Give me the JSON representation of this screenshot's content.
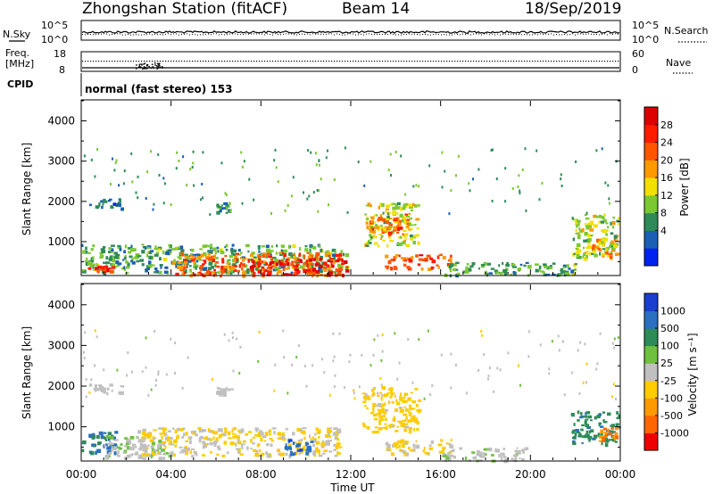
{
  "header": {
    "title": "Zhongshan Station (fitACF)",
    "beam": "Beam 14",
    "date": "18/Sep/2019"
  },
  "noise_panel": {
    "left_label": "N.Sky",
    "left_ticks": [
      "10^5",
      "10^0"
    ],
    "right_ticks": [
      "10^5",
      "10^0"
    ],
    "right_label": "N.Search"
  },
  "freq_panel": {
    "left_label_line1": "Freq.",
    "left_label_line2": "[MHz]",
    "left_ticks": [
      "18",
      "8"
    ],
    "right_ticks": [
      "60",
      "0"
    ],
    "right_label": "Nave"
  },
  "cpid_panel": {
    "label": "CPID",
    "text": "normal (fast stereo) 153"
  },
  "power_panel": {
    "ylabel": "Slant Range [km]",
    "yticks": [
      "4000",
      "3000",
      "2000",
      "1000"
    ],
    "colorbar_label": "Power [dB]",
    "colorbar_ticks": [
      "28",
      "24",
      "20",
      "16",
      "12",
      "8",
      "4"
    ],
    "colors": [
      "#0022ee",
      "#1a5fb4",
      "#2e8b57",
      "#7cc832",
      "#f2e000",
      "#ff9900",
      "#ff5500",
      "#ff1a00",
      "#dd0000"
    ]
  },
  "velocity_panel": {
    "ylabel": "Slant Range [km]",
    "yticks": [
      "4000",
      "3000",
      "2000",
      "1000"
    ],
    "colorbar_label": "Velocity [m s⁻¹]",
    "colorbar_ticks": [
      "1000",
      "500",
      "100",
      "25",
      "-25",
      "-100",
      "-500",
      "-1000"
    ],
    "colors": [
      "#1a3fd0",
      "#2a6fc0",
      "#2e8b57",
      "#70c040",
      "#c0c0c0",
      "#ffcc00",
      "#ff9900",
      "#ff6600",
      "#ee0000"
    ]
  },
  "x_axis": {
    "ticks": [
      "00:00",
      "04:00",
      "08:00",
      "12:00",
      "16:00",
      "20:00",
      "00:00"
    ],
    "label": "Time UT"
  },
  "chart_data": {
    "type": "heatmap",
    "title": "Zhongshan Station (fitACF)",
    "xlabel": "Time UT",
    "ylabel": "Slant Range [km]",
    "x_range_hours": [
      0,
      24
    ],
    "y_range_km": [
      180,
      4500
    ],
    "panels": [
      {
        "name": "Power [dB]",
        "color_scale": [
          0,
          32
        ],
        "blobs": [
          {
            "t0": 0.0,
            "t1": 11.8,
            "r0": 250,
            "r1": 950,
            "value": 10
          },
          {
            "t0": 0.2,
            "t1": 1.4,
            "r0": 300,
            "r1": 420,
            "value": 26
          },
          {
            "t0": 4.0,
            "t1": 11.5,
            "r0": 180,
            "r1": 750,
            "value": 22
          },
          {
            "t0": 7.5,
            "t1": 11.8,
            "r0": 200,
            "r1": 600,
            "value": 28
          },
          {
            "t0": 12.6,
            "t1": 15.0,
            "r0": 900,
            "r1": 2000,
            "value": 14
          },
          {
            "t0": 12.8,
            "t1": 14.6,
            "r0": 1200,
            "r1": 1700,
            "value": 22
          },
          {
            "t0": 13.5,
            "t1": 16.5,
            "r0": 350,
            "r1": 700,
            "value": 24
          },
          {
            "t0": 16.0,
            "t1": 22.0,
            "r0": 180,
            "r1": 500,
            "value": 10
          },
          {
            "t0": 21.8,
            "t1": 23.9,
            "r0": 600,
            "r1": 1700,
            "value": 14
          },
          {
            "t0": 22.7,
            "t1": 23.9,
            "r0": 650,
            "r1": 1100,
            "value": 20
          },
          {
            "t0": 6.0,
            "t1": 6.6,
            "r0": 1700,
            "r1": 2000,
            "value": 9
          },
          {
            "t0": 0.3,
            "t1": 1.8,
            "r0": 1850,
            "r1": 2100,
            "value": 7
          }
        ]
      },
      {
        "name": "Velocity [m s-1]",
        "color_scale": [
          -1000,
          1000
        ],
        "blobs": [
          {
            "t0": 0.0,
            "t1": 1.5,
            "r0": 300,
            "r1": 900,
            "value": 600
          },
          {
            "t0": 1.0,
            "t1": 4.0,
            "r0": 250,
            "r1": 800,
            "value": 80
          },
          {
            "t0": 2.5,
            "t1": 11.5,
            "r0": 300,
            "r1": 1000,
            "value": -120
          },
          {
            "t0": 9.0,
            "t1": 10.2,
            "r0": 350,
            "r1": 800,
            "value": 700
          },
          {
            "t0": 12.5,
            "t1": 15.0,
            "r0": 900,
            "r1": 2000,
            "value": -200
          },
          {
            "t0": 13.5,
            "t1": 16.5,
            "r0": 350,
            "r1": 700,
            "value": -150
          },
          {
            "t0": 16.0,
            "t1": 20.0,
            "r0": 180,
            "r1": 500,
            "value": 40
          },
          {
            "t0": 21.8,
            "t1": 23.9,
            "r0": 600,
            "r1": 1400,
            "value": 500
          },
          {
            "t0": 23.0,
            "t1": 23.9,
            "r0": 650,
            "r1": 1000,
            "value": -500
          },
          {
            "t0": 0.3,
            "t1": 1.8,
            "r0": 1850,
            "r1": 2100,
            "value": 0
          },
          {
            "t0": 6.0,
            "t1": 6.6,
            "r0": 1800,
            "r1": 2000,
            "value": 0
          }
        ]
      }
    ]
  }
}
